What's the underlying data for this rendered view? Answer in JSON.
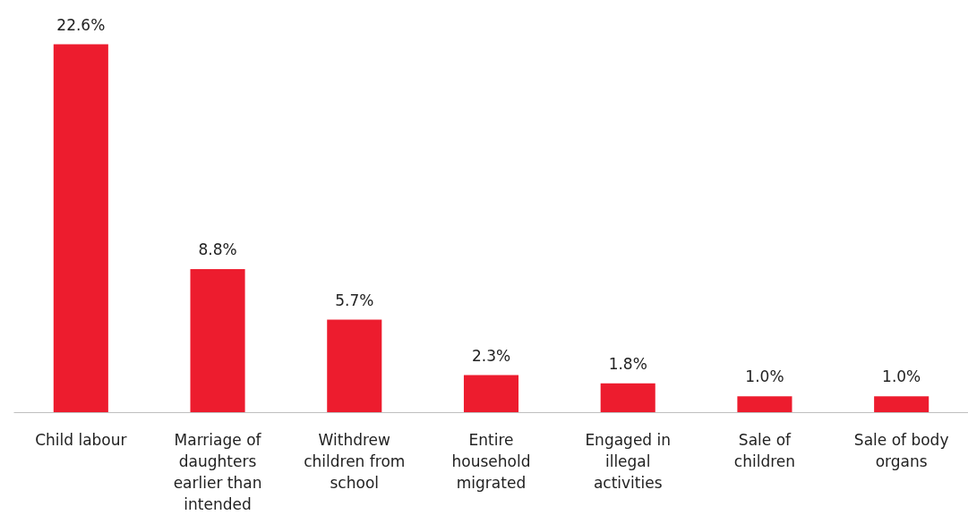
{
  "chart_data": {
    "type": "bar",
    "categories": [
      "Child labour",
      "Marriage of daughters earlier than intended",
      "Withdrew children from school",
      "Entire household migrated",
      "Engaged in illegal activities",
      "Sale of children",
      "Sale of body organs"
    ],
    "values": [
      22.6,
      8.8,
      5.7,
      2.3,
      1.8,
      1.0,
      1.0
    ],
    "value_labels": [
      "22.6%",
      "8.8%",
      "5.7%",
      "2.3%",
      "1.8%",
      "1.0%",
      "1.0%"
    ],
    "color": "#ed1c2e",
    "grid": false
  }
}
